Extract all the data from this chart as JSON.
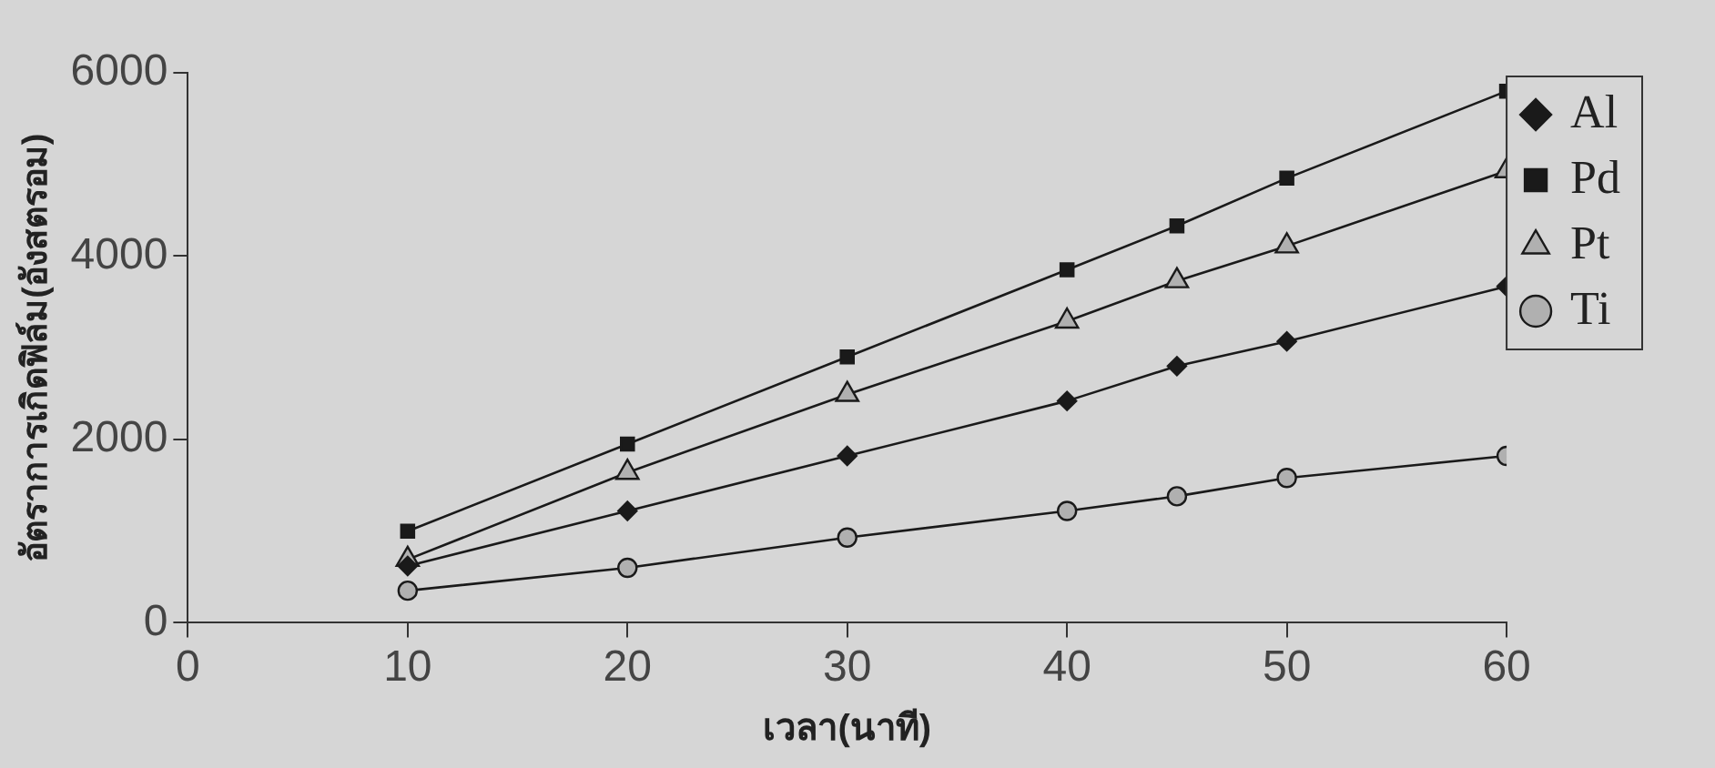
{
  "chart_data": {
    "type": "line",
    "xlabel": "เวลา(นาที)",
    "ylabel": "อัตราการเกิดฟิล์ม(อังสตรอม)",
    "x": [
      10,
      20,
      30,
      40,
      45,
      50,
      60
    ],
    "xlim": [
      0,
      60
    ],
    "xticks": [
      0,
      10,
      20,
      30,
      40,
      50,
      60
    ],
    "ylim": [
      0,
      6000
    ],
    "yticks": [
      0,
      2000,
      4000,
      6000
    ],
    "grid": false,
    "legend": "right",
    "line_style": "solid",
    "series": [
      {
        "name": "Al",
        "color": "#1a1a1a",
        "marker": "diamond",
        "values": [
          620,
          1220,
          1820,
          2420,
          2800,
          3070,
          3670
        ]
      },
      {
        "name": "Pd",
        "color": "#1a1a1a",
        "marker": "square",
        "values": [
          1000,
          1950,
          2900,
          3850,
          4330,
          4850,
          5800
        ]
      },
      {
        "name": "Pt",
        "color": "#1a1a1a",
        "marker": "triangle",
        "values": [
          690,
          1640,
          2490,
          3290,
          3730,
          4110,
          4930
        ]
      },
      {
        "name": "Ti",
        "color": "#1a1a1a",
        "marker": "circle",
        "values": [
          350,
          600,
          930,
          1220,
          1380,
          1580,
          1820
        ]
      }
    ]
  }
}
